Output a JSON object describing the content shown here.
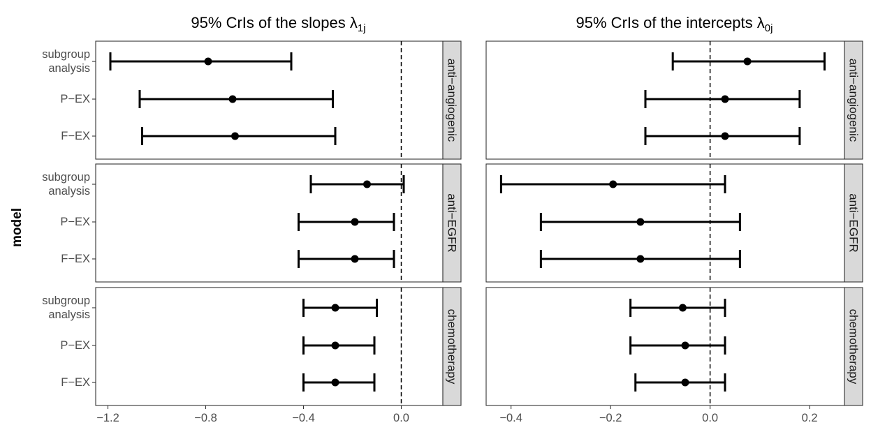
{
  "y_axis_title": "model",
  "chart_data": {
    "type": "errorbar",
    "facet_rows": [
      "anti−angiogenic",
      "anti−EGFR",
      "chemotherapy"
    ],
    "models": [
      {
        "id": "subgroup",
        "lines": [
          "subgroup",
          "analysis"
        ]
      },
      {
        "id": "pex",
        "lines": [
          "P−EX"
        ]
      },
      {
        "id": "fex",
        "lines": [
          "F−EX"
        ]
      }
    ],
    "reference_line": 0,
    "columns": [
      {
        "title": "95% CrIs of the slopes λ",
        "title_subscript": "1j",
        "xlim": [
          -1.25,
          0.17
        ],
        "xticks": [
          -1.2,
          -0.8,
          -0.4,
          0.0
        ],
        "xtick_labels": [
          "−1.2",
          "−0.8",
          "−0.4",
          "0.0"
        ],
        "rows": [
          {
            "facet": "anti−angiogenic",
            "estimates": [
              {
                "model": "subgroup",
                "point": -0.79,
                "lower": -1.19,
                "upper": -0.45
              },
              {
                "model": "pex",
                "point": -0.69,
                "lower": -1.07,
                "upper": -0.28
              },
              {
                "model": "fex",
                "point": -0.68,
                "lower": -1.06,
                "upper": -0.27
              }
            ]
          },
          {
            "facet": "anti−EGFR",
            "estimates": [
              {
                "model": "subgroup",
                "point": -0.14,
                "lower": -0.37,
                "upper": 0.01
              },
              {
                "model": "pex",
                "point": -0.19,
                "lower": -0.42,
                "upper": -0.03
              },
              {
                "model": "fex",
                "point": -0.19,
                "lower": -0.42,
                "upper": -0.03
              }
            ]
          },
          {
            "facet": "chemotherapy",
            "estimates": [
              {
                "model": "subgroup",
                "point": -0.27,
                "lower": -0.4,
                "upper": -0.1
              },
              {
                "model": "pex",
                "point": -0.27,
                "lower": -0.4,
                "upper": -0.11
              },
              {
                "model": "fex",
                "point": -0.27,
                "lower": -0.4,
                "upper": -0.11
              }
            ]
          }
        ]
      },
      {
        "title": "95% CrIs of the intercepts λ",
        "title_subscript": "0j",
        "xlim": [
          -0.45,
          0.27
        ],
        "xticks": [
          -0.4,
          -0.2,
          0.0,
          0.2
        ],
        "xtick_labels": [
          "−0.4",
          "−0.2",
          "0.0",
          "0.2"
        ],
        "rows": [
          {
            "facet": "anti−angiogenic",
            "estimates": [
              {
                "model": "subgroup",
                "point": 0.075,
                "lower": -0.075,
                "upper": 0.23
              },
              {
                "model": "pex",
                "point": 0.03,
                "lower": -0.13,
                "upper": 0.18
              },
              {
                "model": "fex",
                "point": 0.03,
                "lower": -0.13,
                "upper": 0.18
              }
            ]
          },
          {
            "facet": "anti−EGFR",
            "estimates": [
              {
                "model": "subgroup",
                "point": -0.195,
                "lower": -0.42,
                "upper": 0.03
              },
              {
                "model": "pex",
                "point": -0.14,
                "lower": -0.34,
                "upper": 0.06
              },
              {
                "model": "fex",
                "point": -0.14,
                "lower": -0.34,
                "upper": 0.06
              }
            ]
          },
          {
            "facet": "chemotherapy",
            "estimates": [
              {
                "model": "subgroup",
                "point": -0.055,
                "lower": -0.16,
                "upper": 0.03
              },
              {
                "model": "pex",
                "point": -0.05,
                "lower": -0.16,
                "upper": 0.03
              },
              {
                "model": "fex",
                "point": -0.05,
                "lower": -0.15,
                "upper": 0.03
              }
            ]
          }
        ]
      }
    ]
  }
}
